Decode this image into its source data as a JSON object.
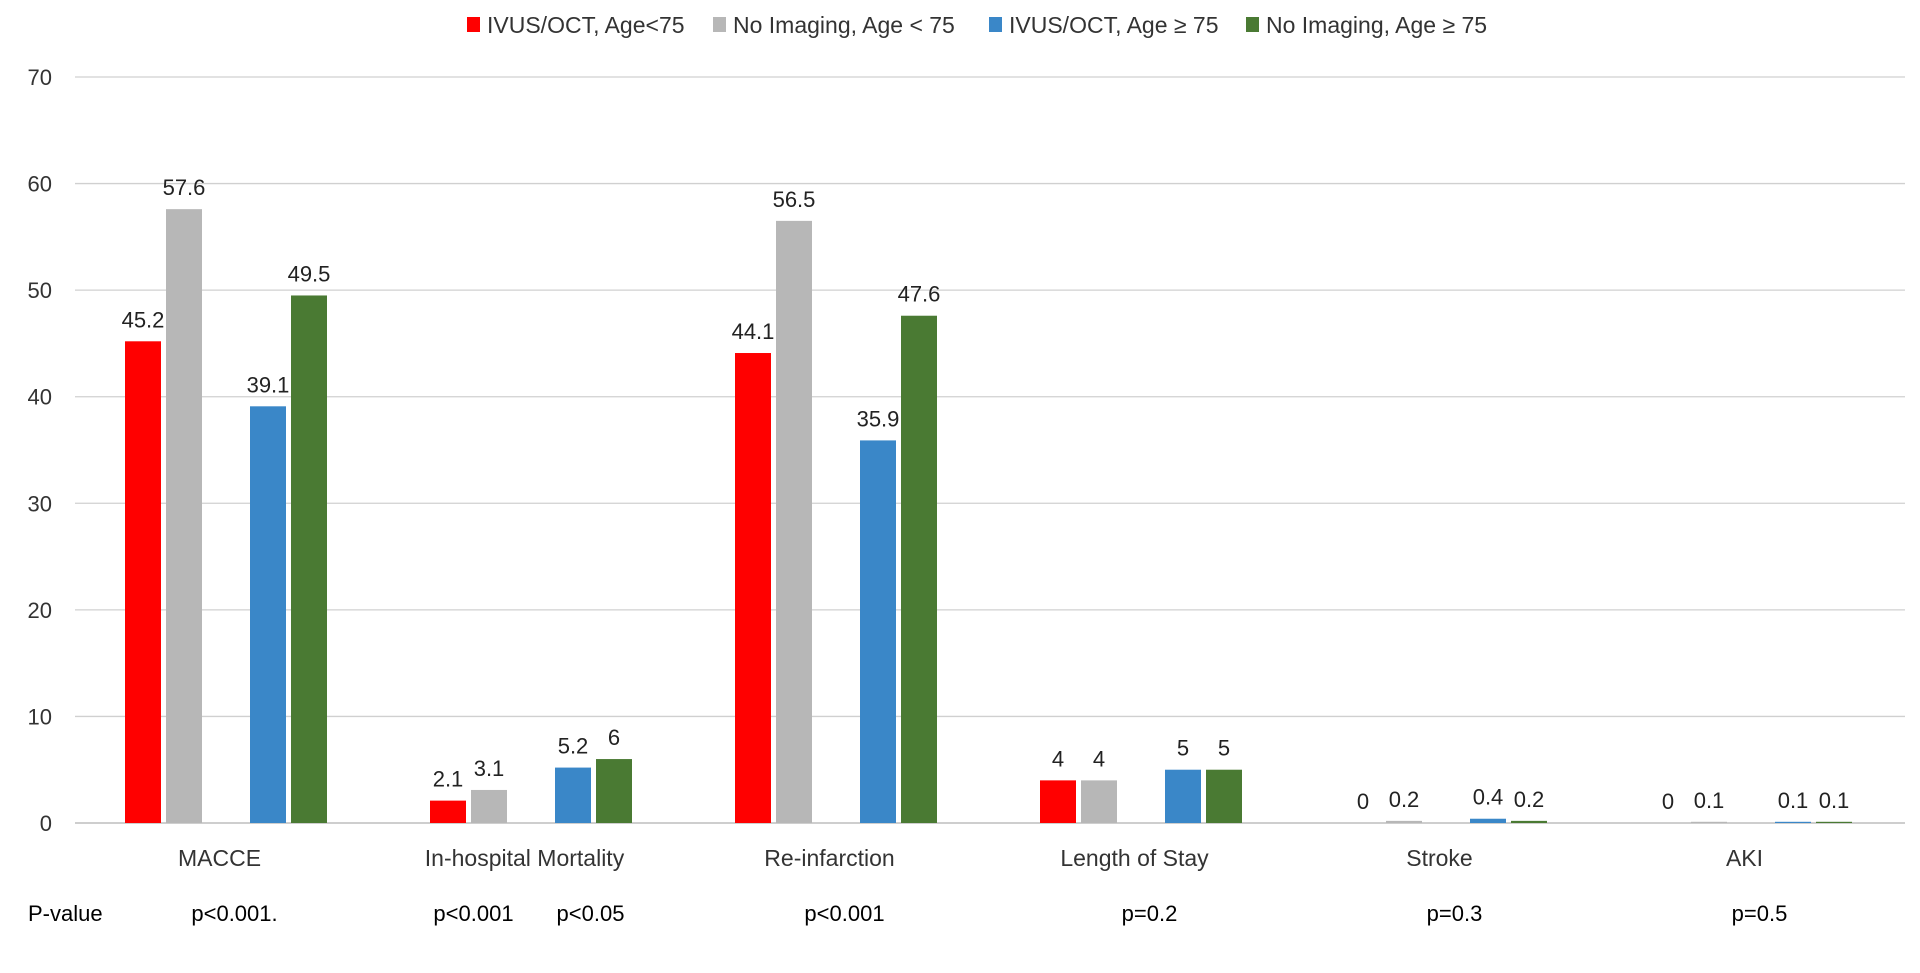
{
  "chart_data": {
    "type": "bar",
    "categories": [
      "MACCE",
      "In-hospital Mortality",
      "Re-infarction",
      "Length of Stay",
      "Stroke",
      "AKI"
    ],
    "series": [
      {
        "name": "IVUS/OCT, Age<75",
        "color": "#ff0000",
        "values": [
          45.2,
          2.1,
          44.1,
          4,
          0,
          0
        ]
      },
      {
        "name": "No Imaging, Age < 75",
        "color": "#b7b7b7",
        "values": [
          57.6,
          3.1,
          56.5,
          4,
          0.2,
          0.1
        ]
      },
      {
        "name": "IVUS/OCT, Age ≥ 75",
        "color": "#3a87c8",
        "values": [
          39.1,
          5.2,
          35.9,
          5,
          0.4,
          0.1
        ]
      },
      {
        "name": "No Imaging, Age ≥ 75",
        "color": "#4a7a33",
        "values": [
          49.5,
          6,
          47.6,
          5,
          0.2,
          0.1
        ]
      }
    ],
    "y_ticks": [
      "0",
      "10",
      "20",
      "30",
      "40",
      "50",
      "60",
      "70"
    ],
    "ylim": [
      0,
      70
    ],
    "grid": true,
    "legend_position": "top-center",
    "pvalue_row": {
      "label": "P-value",
      "entries": [
        {
          "category": "MACCE",
          "text": "p<0.001."
        },
        {
          "category": "In-hospital Mortality",
          "text": "p<0.001",
          "group": "under-75"
        },
        {
          "category": "In-hospital Mortality",
          "text": "p<0.05",
          "group": "over-75"
        },
        {
          "category": "Re-infarction",
          "text": "p<0.001"
        },
        {
          "category": "Length of Stay",
          "text": "p=0.2"
        },
        {
          "category": "Stroke",
          "text": "p=0.3"
        },
        {
          "category": "AKI",
          "text": "p=0.5"
        }
      ]
    }
  }
}
